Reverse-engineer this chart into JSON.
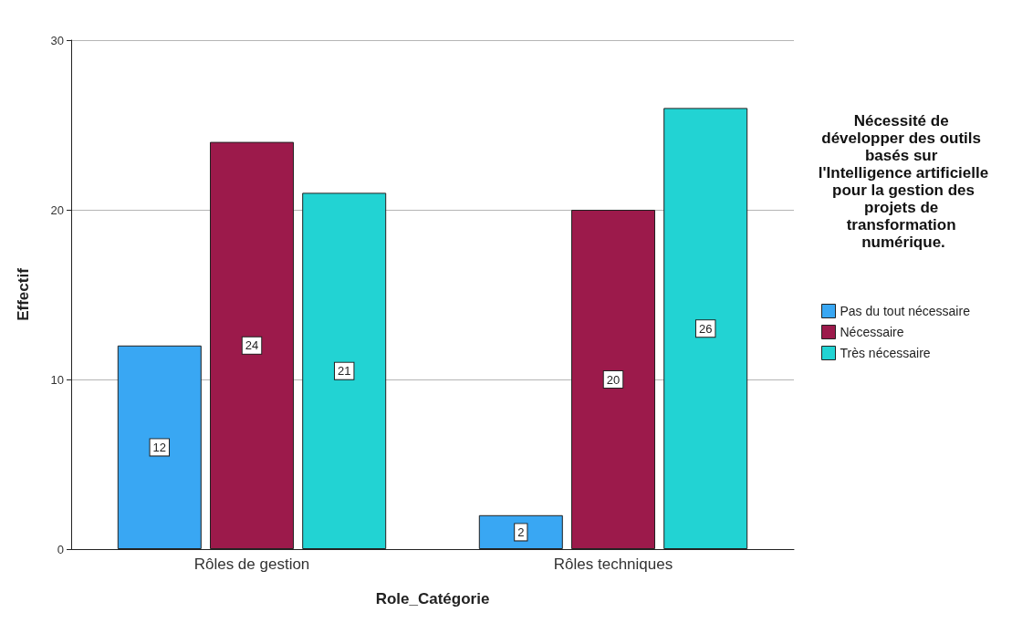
{
  "chart_data": {
    "type": "bar",
    "xlabel": "Role_Catégorie",
    "ylabel": "Effectif",
    "legend_title": "Nécessité de développer des outils basés sur l'Intelligence artificielle pour la gestion des projets de transformation numérique.",
    "categories": [
      "Rôles de gestion",
      "Rôles techniques"
    ],
    "series": [
      {
        "name": "Pas du tout nécessaire",
        "color": "#39a7f3",
        "values": [
          12,
          2
        ]
      },
      {
        "name": "Nécessaire",
        "color": "#9c1a4b",
        "values": [
          24,
          20
        ]
      },
      {
        "name": "Très nécessaire",
        "color": "#22d3d3",
        "values": [
          21,
          26
        ]
      }
    ],
    "ylim": [
      0,
      30
    ],
    "yticks": [
      0,
      10,
      20,
      30
    ],
    "grid": "y",
    "legend": "right",
    "data_labels": true
  }
}
